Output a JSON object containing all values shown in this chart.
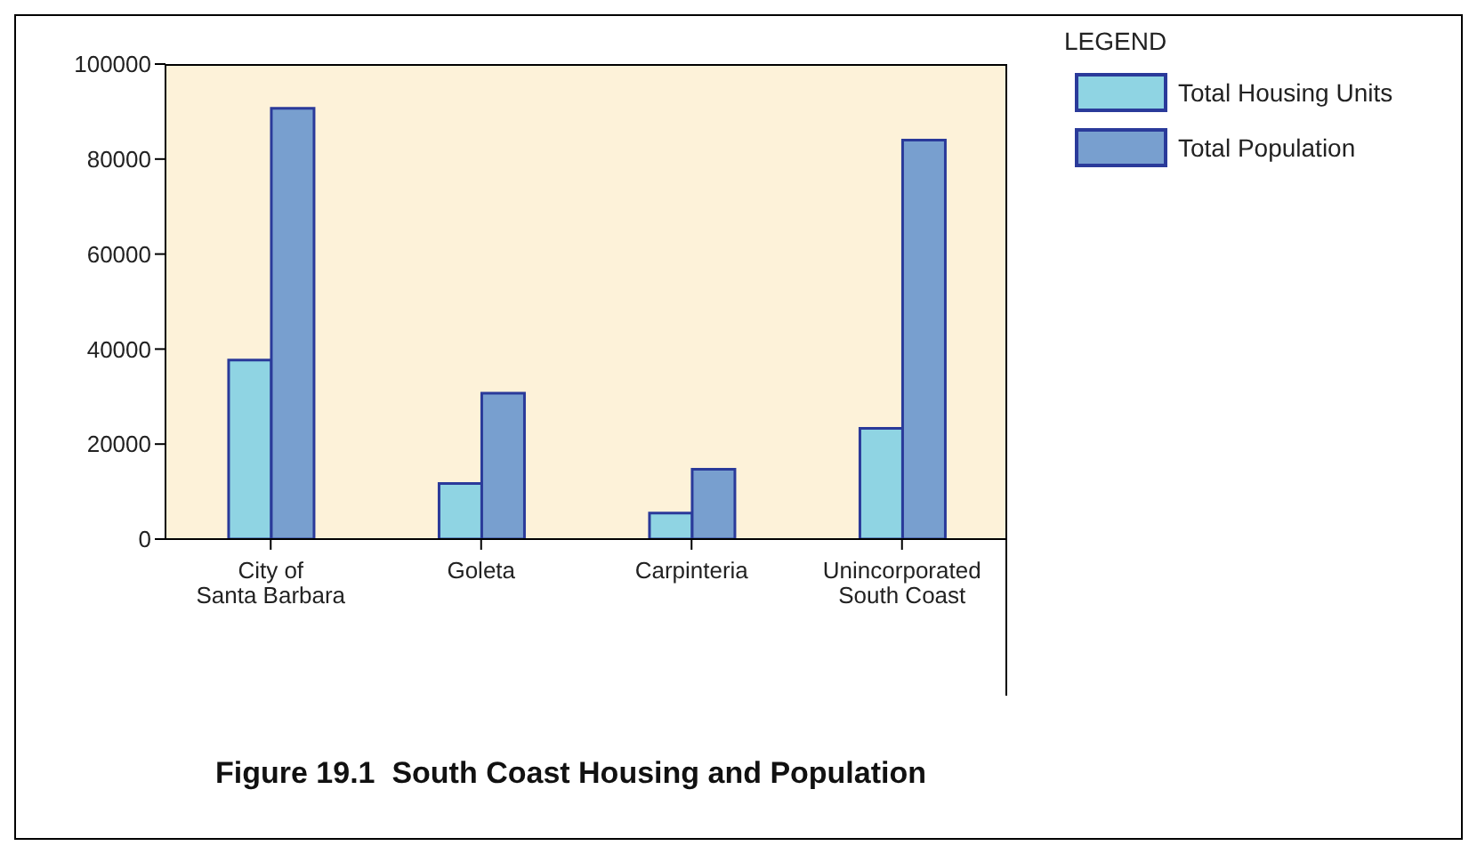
{
  "chart_data": {
    "type": "bar",
    "title": "Figure 19.1  South Coast Housing and Population",
    "legend_title": "LEGEND",
    "categories": [
      "City of Santa Barbara",
      "Goleta",
      "Carpinteria",
      "Unincorporated South Coast"
    ],
    "series": [
      {
        "name": "Total Housing Units",
        "color": "#8fd4e3",
        "values": [
          37700,
          11700,
          5500,
          23300
        ]
      },
      {
        "name": "Total Population",
        "color": "#789fcf",
        "values": [
          90700,
          30700,
          14700,
          84000
        ]
      }
    ],
    "ylim": [
      0,
      100000
    ],
    "yticks": [
      0,
      20000,
      40000,
      60000,
      80000,
      100000
    ],
    "grid": false,
    "legend": "top right"
  }
}
